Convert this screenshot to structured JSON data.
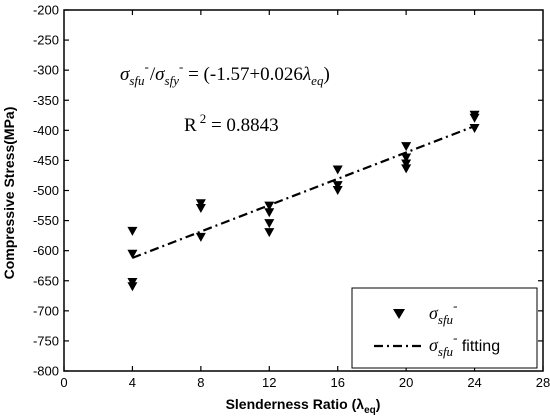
{
  "chart_data": {
    "type": "scatter",
    "xlabel": "Slenderness Ratio (λ",
    "xlabel_sub": "eq",
    "xlabel_close": ")",
    "ylabel": "Compressive Stress(MPa)",
    "xlim": [
      0,
      28
    ],
    "ylim": [
      -800,
      -200
    ],
    "xticks": [
      0,
      4,
      8,
      12,
      16,
      20,
      24,
      28
    ],
    "yticks": [
      -200,
      -250,
      -300,
      -350,
      -400,
      -450,
      -500,
      -550,
      -600,
      -650,
      -700,
      -750,
      -800
    ],
    "grid": false,
    "legend_position": "bottom-right",
    "series": [
      {
        "name": "σsfu-",
        "marker": "down-triangle",
        "color": "#000000",
        "points": [
          [
            4,
            -568
          ],
          [
            4,
            -606
          ],
          [
            4,
            -653
          ],
          [
            4,
            -660
          ],
          [
            8,
            -522
          ],
          [
            8,
            -530
          ],
          [
            8,
            -578
          ],
          [
            12,
            -526
          ],
          [
            12,
            -537
          ],
          [
            12,
            -555
          ],
          [
            12,
            -570
          ],
          [
            16,
            -466
          ],
          [
            16,
            -492
          ],
          [
            16,
            -500
          ],
          [
            20,
            -427
          ],
          [
            20,
            -446
          ],
          [
            20,
            -456
          ],
          [
            20,
            -464
          ],
          [
            24,
            -375
          ],
          [
            24,
            -380
          ],
          [
            24,
            -397
          ]
        ]
      },
      {
        "name": "σsfu- fitting",
        "style": "dash-dot",
        "color": "#000000",
        "x": [
          4,
          24
        ],
        "y": [
          -612,
          -393
        ]
      }
    ],
    "annotations": {
      "equation": {
        "sigma": "σ",
        "sub1": "sfu",
        "sup": "-",
        "slash": "/",
        "sub2": "sfy",
        "rhs": " = (-1.57+0.026",
        "lambda": "λ",
        "sub3": "eq",
        "close": ")"
      },
      "r2": {
        "label": "R",
        "sup": "2",
        "value": " = 0.8843"
      }
    },
    "legend": {
      "item1": {
        "sigma": "σ",
        "sub": "sfu",
        "sup": "-"
      },
      "item2": {
        "sigma": "σ",
        "sub": "sfu",
        "sup": "-",
        "suffix": " fitting"
      }
    }
  }
}
